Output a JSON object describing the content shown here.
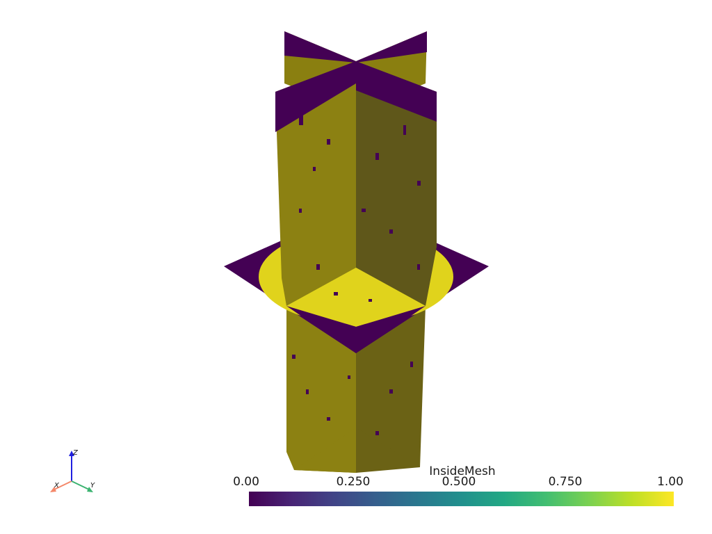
{
  "scene": {
    "description_colors": {
      "inside": "#e0d31c",
      "outside": "#440154",
      "inside_shaded": "#8c8112",
      "inside_dark": "#5f571a"
    }
  },
  "scalar_bar": {
    "title": "InsideMesh",
    "ticks": [
      "0.00",
      "0.250",
      "0.500",
      "0.750",
      "1.00"
    ],
    "colormap": "viridis",
    "range": [
      0,
      1
    ]
  },
  "axes": {
    "x_label": "X",
    "y_label": "Y",
    "z_label": "Z",
    "x_color": "#f4886a",
    "y_color": "#3cb371",
    "z_color": "#2020e0"
  }
}
